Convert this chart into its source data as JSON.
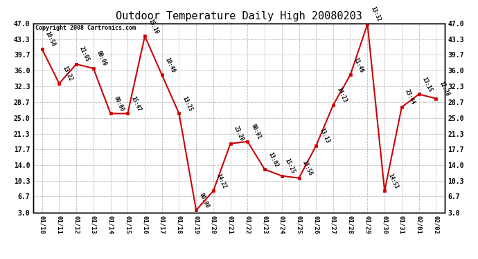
{
  "title": "Outdoor Temperature Daily High 20080203",
  "copyright": "Copyright 2008 Cartronics.com",
  "x_labels": [
    "01/10",
    "01/11",
    "01/12",
    "01/13",
    "01/14",
    "01/15",
    "01/16",
    "01/17",
    "01/18",
    "01/19",
    "01/20",
    "01/21",
    "01/22",
    "01/23",
    "01/24",
    "01/25",
    "01/26",
    "01/27",
    "01/28",
    "01/29",
    "01/30",
    "01/31",
    "02/01",
    "02/02"
  ],
  "y_values": [
    41.0,
    33.0,
    37.5,
    36.5,
    26.0,
    26.0,
    44.0,
    35.0,
    26.0,
    3.5,
    8.0,
    19.0,
    19.5,
    13.0,
    11.5,
    11.0,
    18.5,
    28.0,
    35.0,
    46.8,
    8.0,
    27.5,
    30.5,
    29.5
  ],
  "time_labels": [
    "10:50",
    "13:22",
    "21:05",
    "00:00",
    "00:00",
    "15:47",
    "15:10",
    "10:40",
    "13:25",
    "00:00",
    "14:22",
    "23:20",
    "00:01",
    "13:02",
    "15:25",
    "11:56",
    "13:13",
    "14:23",
    "11:46",
    "13:32",
    "14:53",
    "23:44",
    "13:15",
    "12:28"
  ],
  "line_color": "#cc0000",
  "marker_color": "#cc0000",
  "bg_color": "#ffffff",
  "grid_color": "#bbbbbb",
  "title_fontsize": 11,
  "ylim": [
    3.0,
    47.0
  ],
  "yticks": [
    3.0,
    6.7,
    10.3,
    14.0,
    17.7,
    21.3,
    25.0,
    28.7,
    32.3,
    36.0,
    39.7,
    43.3,
    47.0
  ]
}
